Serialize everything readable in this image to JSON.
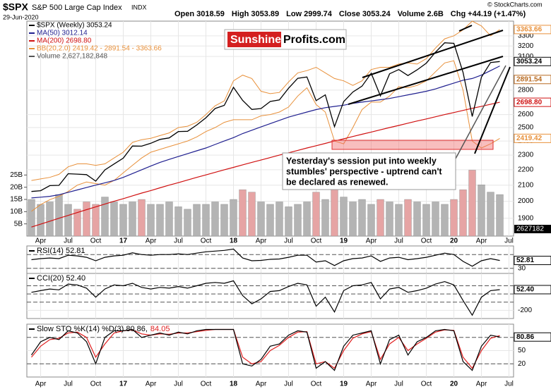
{
  "header": {
    "symbol": "$SPX",
    "name": "S&P 500 Large Cap Index",
    "exchange": "INDX",
    "date": "29-Jun-2020",
    "quote": [
      {
        "label": "Open",
        "value": 3018.59
      },
      {
        "label": "High",
        "value": 3053.89
      },
      {
        "label": "Low",
        "value": 2999.74
      },
      {
        "label": "Close",
        "value": 3053.24
      },
      {
        "label": "Volume",
        "value": "2.6B"
      },
      {
        "label": "Chg",
        "value": "+44.19 (+1.47%)"
      }
    ],
    "copyright": "© StockCharts.com"
  },
  "watermark": {
    "brand": "Sunshine",
    "domain": "Profits.com"
  },
  "callout": [
    "Yesterday's session put into weekly",
    "stumbles' perspective - uptrend can't",
    "be declared as renewed."
  ],
  "chart_data": [
    {
      "type": "line",
      "log_scale": true,
      "grid": true,
      "categories": [
        null,
        "Apr",
        null,
        null,
        "Jul",
        null,
        null,
        "Oct",
        null,
        null,
        "17",
        null,
        null,
        "Apr",
        null,
        null,
        "Jul",
        null,
        null,
        "Oct",
        null,
        null,
        "18",
        null,
        null,
        "Apr",
        null,
        null,
        "Jul",
        null,
        null,
        "Oct",
        null,
        null,
        "19",
        null,
        null,
        "Apr",
        null,
        null,
        "Jul",
        null,
        null,
        "Oct",
        null,
        null,
        "20",
        null,
        null,
        "Apr",
        null,
        null,
        "Jul"
      ],
      "ylim": [
        1800,
        3450
      ],
      "yticks": [
        1900,
        2000,
        2100,
        2200,
        2300,
        2400,
        2500,
        2600,
        2800,
        3100,
        3200,
        3300
      ],
      "series": [
        {
          "name": "$SPX (Weekly) 3053.24",
          "color": "#000000",
          "values": [
            2060,
            2065,
            2097,
            2099,
            2174,
            2171,
            2168,
            2126,
            2199,
            2239,
            2279,
            2364,
            2363,
            2384,
            2412,
            2423,
            2470,
            2472,
            2519,
            2575,
            2648,
            2674,
            2824,
            2714,
            2641,
            2648,
            2705,
            2718,
            2816,
            2902,
            2914,
            2712,
            2760,
            2507,
            2704,
            2784,
            2834,
            2946,
            2752,
            2942,
            2980,
            2926,
            2977,
            3038,
            3141,
            3231,
            3226,
            2954,
            2585,
            2912,
            3044,
            3053.24,
            null
          ]
        },
        {
          "name": "MA(50) 3012.14",
          "color": "#1f1f8f",
          "values": [
            2020,
            2025,
            2030,
            2040,
            2055,
            2070,
            2085,
            2100,
            2115,
            2130,
            2150,
            2175,
            2200,
            2225,
            2250,
            2270,
            2290,
            2310,
            2330,
            2350,
            2375,
            2400,
            2425,
            2455,
            2480,
            2505,
            2530,
            2555,
            2580,
            2600,
            2620,
            2640,
            2655,
            2665,
            2675,
            2690,
            2700,
            2710,
            2720,
            2730,
            2745,
            2760,
            2775,
            2790,
            2810,
            2835,
            2860,
            2885,
            2900,
            2930,
            2970,
            3012.14,
            null
          ]
        },
        {
          "name": "MA(200) 2698.80",
          "color": "#d01010",
          "values": [
            1850,
            1866,
            1883,
            1900,
            1916,
            1933,
            1950,
            1966,
            1983,
            2000,
            2016,
            2033,
            2050,
            2066,
            2083,
            2100,
            2116,
            2133,
            2150,
            2166,
            2183,
            2200,
            2216,
            2233,
            2250,
            2266,
            2283,
            2300,
            2316,
            2333,
            2350,
            2366,
            2383,
            2400,
            2416,
            2433,
            2450,
            2466,
            2483,
            2500,
            2516,
            2533,
            2550,
            2566,
            2583,
            2600,
            2616,
            2633,
            2650,
            2666,
            2683,
            2698.8,
            null
          ]
        }
      ],
      "bands": {
        "name": "BB(20,2.0) 2419.42 - 2891.54 - 3363.66",
        "color": "#e8903a",
        "upper": [
          2130,
          2140,
          2150,
          2170,
          2220,
          2240,
          2240,
          2230,
          2240,
          2280,
          2320,
          2390,
          2410,
          2420,
          2440,
          2460,
          2500,
          2510,
          2540,
          2600,
          2670,
          2710,
          2880,
          2930,
          2900,
          2790,
          2770,
          2780,
          2870,
          2950,
          2970,
          3000,
          2950,
          2900,
          2880,
          2840,
          2880,
          2980,
          3000,
          3000,
          3030,
          3040,
          3030,
          3080,
          3180,
          3270,
          3300,
          3360,
          3450,
          3400,
          3300,
          3363.66,
          null
        ],
        "lower": [
          1940,
          1980,
          2010,
          2030,
          2060,
          2100,
          2120,
          2110,
          2100,
          2130,
          2180,
          2230,
          2280,
          2320,
          2340,
          2360,
          2380,
          2400,
          2430,
          2470,
          2500,
          2540,
          2560,
          2560,
          2560,
          2590,
          2600,
          2620,
          2660,
          2750,
          2820,
          2680,
          2620,
          2400,
          2380,
          2500,
          2640,
          2700,
          2700,
          2750,
          2830,
          2820,
          2840,
          2880,
          2960,
          3040,
          3060,
          2800,
          2400,
          2350,
          2380,
          2419.42,
          null
        ]
      },
      "volume": {
        "name": "Volume 2,627,182,848",
        "color": "#b4b4b4",
        "down_color": "#e6a4a4",
        "values": [
          15,
          13,
          14,
          17,
          13,
          11,
          14,
          13,
          16,
          14,
          13,
          14,
          15,
          13,
          13,
          14,
          12,
          11,
          13,
          13,
          14,
          13,
          15,
          19,
          18,
          14,
          13,
          14,
          12,
          13,
          14,
          18,
          15,
          19,
          16,
          14,
          15,
          13,
          15,
          14,
          13,
          15,
          14,
          13,
          14,
          13,
          15,
          19,
          27,
          21,
          18,
          17,
          null
        ],
        "ylim": [
          0,
          88
        ],
        "yticks": [
          {
            "value": 5,
            "label": "5B"
          },
          {
            "value": 10,
            "label": "10B"
          },
          {
            "value": 15,
            "label": "15B"
          },
          {
            "value": 20,
            "label": "20B"
          },
          {
            "value": 25,
            "label": "25B"
          }
        ],
        "tag": "2627182"
      },
      "value_tags": [
        {
          "value": 3363.66,
          "color": "#e8903a"
        },
        {
          "value": 3053.24,
          "color": "#000000"
        },
        {
          "value": 2891.54,
          "color": "#b86a20"
        },
        {
          "value": 2698.8,
          "label": "2698.80",
          "color": "#d01010"
        },
        {
          "value": 2419.42,
          "color": "#e8903a"
        }
      ]
    },
    {
      "type": "line",
      "ylim": [
        15,
        95
      ],
      "yticks": [
        30
      ],
      "ref_lines": [
        70,
        30
      ],
      "series": [
        {
          "name": "RSI(14) 52.81",
          "color": "#000000",
          "values": [
            55,
            58,
            60,
            58,
            68,
            66,
            62,
            52,
            62,
            66,
            68,
            75,
            70,
            68,
            70,
            70,
            72,
            70,
            74,
            78,
            80,
            82,
            86,
            60,
            52,
            53,
            56,
            57,
            62,
            68,
            68,
            48,
            52,
            38,
            52,
            58,
            60,
            66,
            50,
            60,
            62,
            55,
            58,
            62,
            68,
            74,
            70,
            50,
            36,
            52,
            58,
            52.81,
            null
          ]
        }
      ],
      "value_tags": [
        {
          "value": 52.81,
          "color": "#000000"
        }
      ]
    },
    {
      "type": "line",
      "ylim": [
        -300,
        250
      ],
      "yticks": [
        -200
      ],
      "ref_lines": [
        100,
        0,
        -100
      ],
      "series": [
        {
          "name": "CCI(20) 52.40",
          "color": "#000000",
          "values": [
            20,
            40,
            60,
            50,
            120,
            110,
            70,
            -40,
            60,
            110,
            100,
            130,
            80,
            60,
            80,
            70,
            90,
            70,
            100,
            130,
            140,
            130,
            160,
            -20,
            -120,
            -60,
            30,
            40,
            90,
            130,
            110,
            -150,
            -40,
            -220,
            40,
            100,
            110,
            140,
            -60,
            60,
            80,
            20,
            40,
            70,
            120,
            150,
            110,
            -80,
            -260,
            -40,
            40,
            52.4,
            null
          ]
        }
      ],
      "value_tags": [
        {
          "value": 52.4,
          "label": "52.40",
          "color": "#000000"
        }
      ]
    },
    {
      "type": "line",
      "ylim": [
        -10,
        110
      ],
      "yticks": [
        50,
        20
      ],
      "ref_lines": [
        80,
        20
      ],
      "series": [
        {
          "name": "Slow STO %K(14) %D(3) 80.86,",
          "color": "#000000",
          "values": [
            40,
            70,
            80,
            75,
            95,
            90,
            70,
            20,
            80,
            95,
            95,
            98,
            80,
            85,
            90,
            85,
            92,
            88,
            95,
            98,
            98,
            98,
            98,
            20,
            15,
            30,
            60,
            65,
            85,
            95,
            92,
            10,
            25,
            5,
            60,
            85,
            90,
            95,
            20,
            75,
            85,
            40,
            70,
            80,
            95,
            98,
            95,
            25,
            5,
            60,
            85,
            80.86,
            null
          ]
        },
        {
          "name": "84.05",
          "color": "#e02020",
          "values": [
            35,
            60,
            75,
            78,
            90,
            92,
            80,
            35,
            65,
            90,
            95,
            97,
            88,
            85,
            88,
            87,
            90,
            90,
            93,
            96,
            98,
            98,
            98,
            35,
            20,
            25,
            50,
            62,
            80,
            92,
            93,
            20,
            25,
            10,
            50,
            78,
            88,
            93,
            30,
            65,
            80,
            50,
            65,
            78,
            92,
            97,
            96,
            35,
            10,
            50,
            78,
            84.05,
            null
          ]
        }
      ],
      "value_tags": [
        {
          "value": 80.86,
          "color": "#000000"
        }
      ]
    }
  ]
}
